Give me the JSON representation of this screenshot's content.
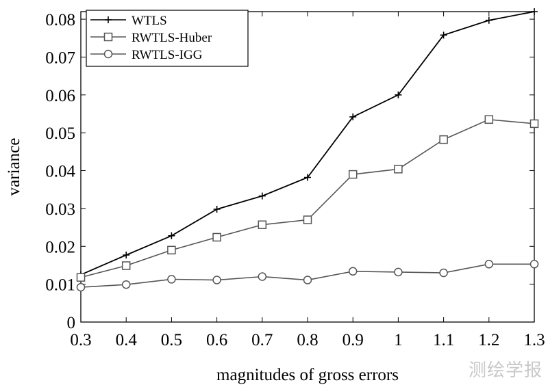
{
  "chart_data": {
    "type": "line",
    "title": "",
    "xlabel": "magnitudes of gross errors",
    "ylabel": "variance",
    "x": [
      0.3,
      0.4,
      0.5,
      0.6,
      0.7,
      0.8,
      0.9,
      1.0,
      1.1,
      1.2,
      1.3
    ],
    "xlim": [
      0.3,
      1.3
    ],
    "ylim": [
      0,
      0.082
    ],
    "xticks": [
      "0.3",
      "0.4",
      "0.5",
      "0.6",
      "0.7",
      "0.8",
      "0.9",
      "1",
      "1.1",
      "1.2",
      "1.3"
    ],
    "xtick_values": [
      0.3,
      0.4,
      0.5,
      0.6,
      0.7,
      0.8,
      0.9,
      1.0,
      1.1,
      1.2,
      1.3
    ],
    "yticks": [
      "0",
      "0.01",
      "0.02",
      "0.03",
      "0.04",
      "0.05",
      "0.06",
      "0.07",
      "0.08"
    ],
    "ytick_values": [
      0,
      0.01,
      0.02,
      0.03,
      0.04,
      0.05,
      0.06,
      0.07,
      0.08
    ],
    "grid": false,
    "legend_position": "top-left",
    "series": [
      {
        "name": "WTLS",
        "marker": "plus",
        "color": "#000000",
        "values": [
          0.0125,
          0.0177,
          0.0228,
          0.0298,
          0.0333,
          0.0382,
          0.0542,
          0.06,
          0.0758,
          0.0797,
          0.082
        ]
      },
      {
        "name": "RWTLS-Huber",
        "marker": "square",
        "color": "#555555",
        "values": [
          0.0118,
          0.0149,
          0.019,
          0.0224,
          0.0257,
          0.027,
          0.039,
          0.0404,
          0.0482,
          0.0535,
          0.0524
        ]
      },
      {
        "name": "RWTLS-IGG",
        "marker": "circle",
        "color": "#555555",
        "values": [
          0.0092,
          0.0099,
          0.0113,
          0.0111,
          0.012,
          0.0111,
          0.0134,
          0.0132,
          0.013,
          0.0153,
          0.0153
        ]
      }
    ]
  },
  "watermark": "测绘学报"
}
